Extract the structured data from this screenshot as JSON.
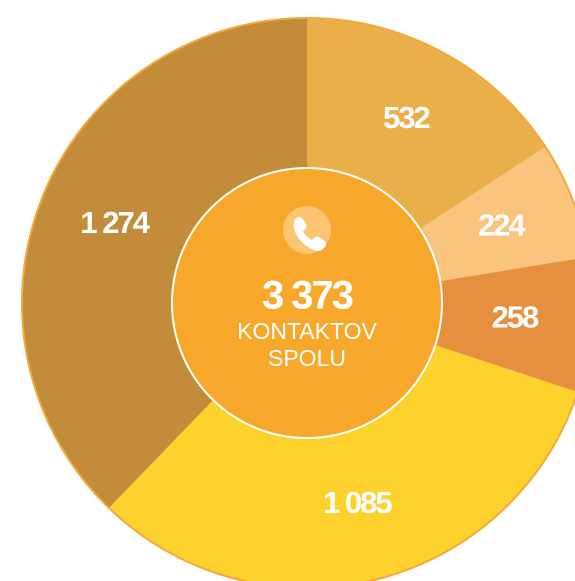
{
  "chart_data": {
    "type": "donut",
    "categories": [
      null,
      null,
      null,
      null,
      null
    ],
    "values": [
      532,
      224,
      258,
      1085,
      1274
    ],
    "value_labels": [
      "532",
      "224",
      "258",
      "1 085",
      "1 274"
    ],
    "colors": [
      "#e9b04a",
      "#f8c47e",
      "#e68f3e",
      "#fdd22c",
      "#c38c3a"
    ],
    "total": 3373,
    "total_label": "3 373",
    "center_lines": [
      "KONTAKTOV",
      "SPOLU"
    ]
  }
}
